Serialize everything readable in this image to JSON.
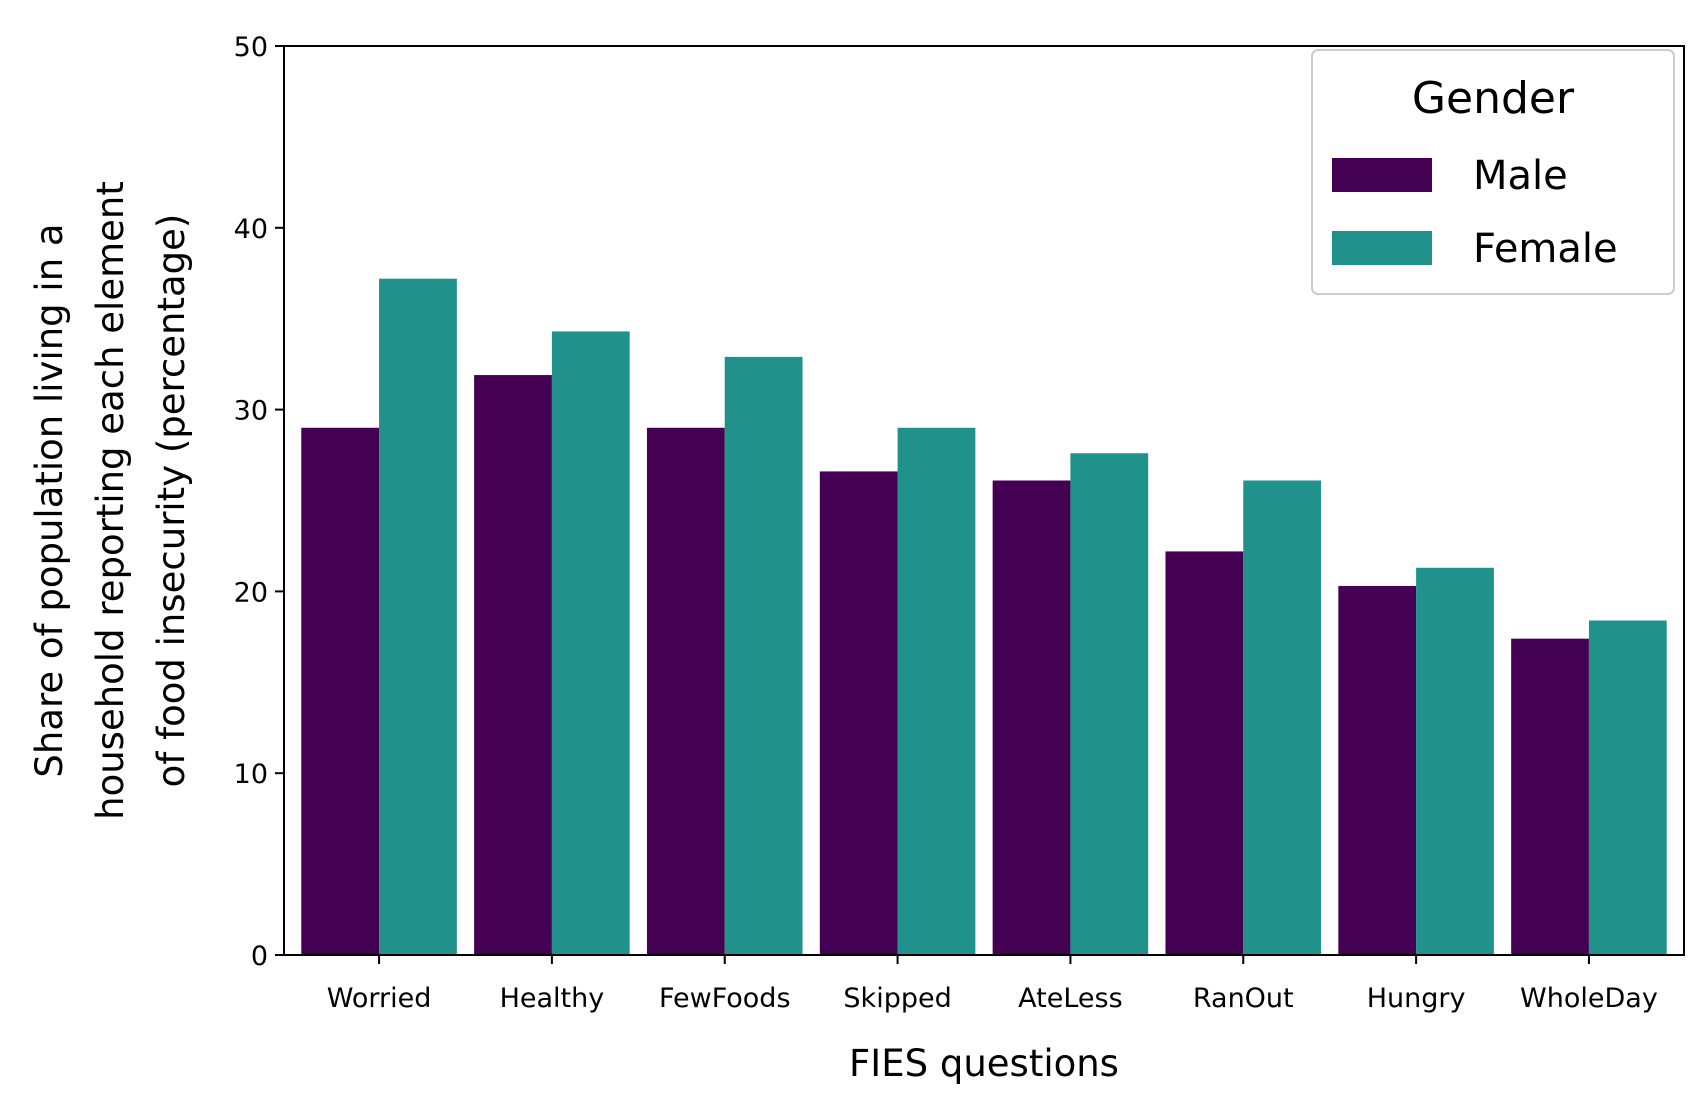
{
  "chart_data": {
    "type": "bar",
    "xlabel": "FIES questions",
    "ylabel": [
      "Share of population living in a",
      "household reporting each element",
      "of food insecurity (percentage)"
    ],
    "ylim": [
      0,
      50
    ],
    "yticks": [
      0,
      10,
      20,
      30,
      40,
      50
    ],
    "categories": [
      "Worried",
      "Healthy",
      "FewFoods",
      "Skipped",
      "AteLess",
      "RanOut",
      "Hungry",
      "WholeDay"
    ],
    "series": [
      {
        "name": "Male",
        "color": "#440154",
        "values": [
          29.0,
          31.9,
          29.0,
          26.6,
          26.1,
          22.2,
          20.3,
          17.4
        ]
      },
      {
        "name": "Female",
        "color": "#21918c",
        "values": [
          37.2,
          34.3,
          32.9,
          29.0,
          27.6,
          26.1,
          21.3,
          18.4
        ]
      }
    ],
    "legend": {
      "title": "Gender",
      "position": "top-right"
    },
    "grid": false
  }
}
